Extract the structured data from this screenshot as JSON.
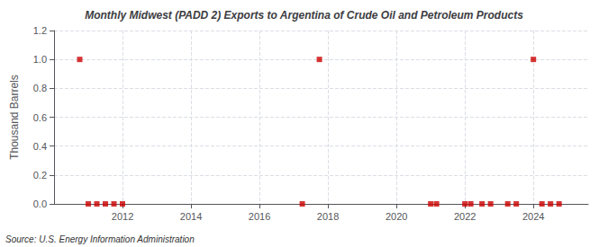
{
  "chart_data": {
    "type": "scatter",
    "title": "Monthly Midwest (PADD 2) Exports to Argentina of Crude Oil and Petroleum Products",
    "ylabel": "Thousand Barrels",
    "annotations": [
      "Source: U.S. Energy Information Administration"
    ],
    "x": [
      2010.75,
      2011.0,
      2011.25,
      2011.5,
      2011.75,
      2012.0,
      2017.25,
      2017.75,
      2021.0,
      2021.17,
      2022.0,
      2022.17,
      2022.5,
      2022.75,
      2023.25,
      2023.5,
      2024.0,
      2024.25,
      2024.5,
      2024.75
    ],
    "values": [
      1.0,
      0.0,
      0.0,
      0.0,
      0.0,
      0.0,
      0.0,
      1.0,
      0.0,
      0.0,
      0.0,
      0.0,
      0.0,
      0.0,
      0.0,
      0.0,
      1.0,
      0.0,
      0.0,
      0.0
    ],
    "color": "#cc0000",
    "marker": "square",
    "xlim": [
      2010.0,
      2025.6
    ],
    "xticks": [
      2012,
      2014,
      2016,
      2018,
      2020,
      2022,
      2024
    ],
    "ylim": [
      0,
      1.2
    ],
    "yticks": [
      {
        "value": 0.0,
        "label": "0.0"
      },
      {
        "value": 0.2,
        "label": "0.2"
      },
      {
        "value": 0.4,
        "label": "0.4"
      },
      {
        "value": 0.6,
        "label": "0.6"
      },
      {
        "value": 0.8,
        "label": "0.8"
      },
      {
        "value": 1.0,
        "label": "1.0"
      },
      {
        "value": 1.2,
        "label": "1.2"
      }
    ],
    "grid": true
  }
}
